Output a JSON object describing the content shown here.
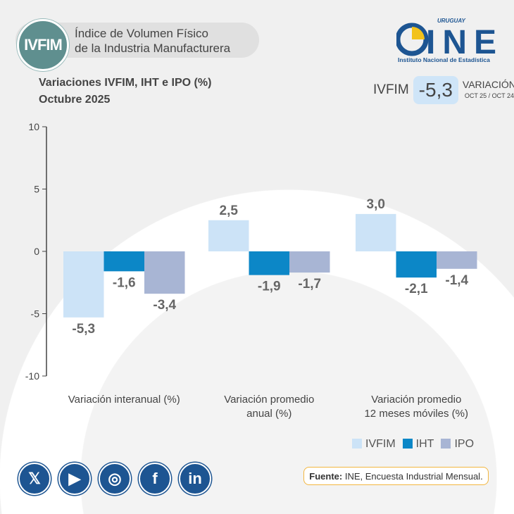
{
  "header": {
    "badge": "IVFIM",
    "title_line1": "Índice de Volumen Físico",
    "title_line2": "de la Industria Manufacturera",
    "logo_top": "URUGUAY",
    "logo_text": "INE",
    "logo_sub": "Instituto Nacional de Estadística"
  },
  "subtitle": {
    "line1": "Variaciones IVFIM, IHT e IPO (%)",
    "line2": "Octubre 2025"
  },
  "kpi": {
    "name": "IVFIM",
    "value": "-5,3",
    "label": "VARIACIÓN",
    "period": "OCT 25 / OCT 24"
  },
  "chart_data": {
    "type": "bar",
    "categories": [
      "Variación interanual (%)",
      "Variación promedio anual (%)",
      "Variación promedio 12 meses móviles (%)"
    ],
    "category_lines": [
      [
        "Variación interanual (%)"
      ],
      [
        "Variación promedio",
        "anual (%)"
      ],
      [
        "Variación promedio",
        "12 meses móviles (%)"
      ]
    ],
    "series": [
      {
        "name": "IVFIM",
        "color": "#cce3f7",
        "values": [
          -5.3,
          2.5,
          3.0
        ],
        "labels": [
          "-5,3",
          "2,5",
          "3,0"
        ]
      },
      {
        "name": "IHT",
        "color": "#0c87c7",
        "values": [
          -1.6,
          -1.9,
          -2.1
        ],
        "labels": [
          "-1,6",
          "-1,9",
          "-2,1"
        ]
      },
      {
        "name": "IPO",
        "color": "#a8b5d4",
        "values": [
          -3.4,
          -1.7,
          -1.4
        ],
        "labels": [
          "-3,4",
          "-1,7",
          "-1,4"
        ]
      }
    ],
    "ylim": [
      -10,
      10
    ],
    "yticks": [
      10,
      5,
      0,
      -5,
      -10
    ],
    "legend": "bottom-right"
  },
  "social": [
    "X",
    "YouTube",
    "Instagram",
    "Facebook",
    "LinkedIn"
  ],
  "source": {
    "bold": "Fuente:",
    "text": " INE, Encuesta Industrial Mensual."
  }
}
